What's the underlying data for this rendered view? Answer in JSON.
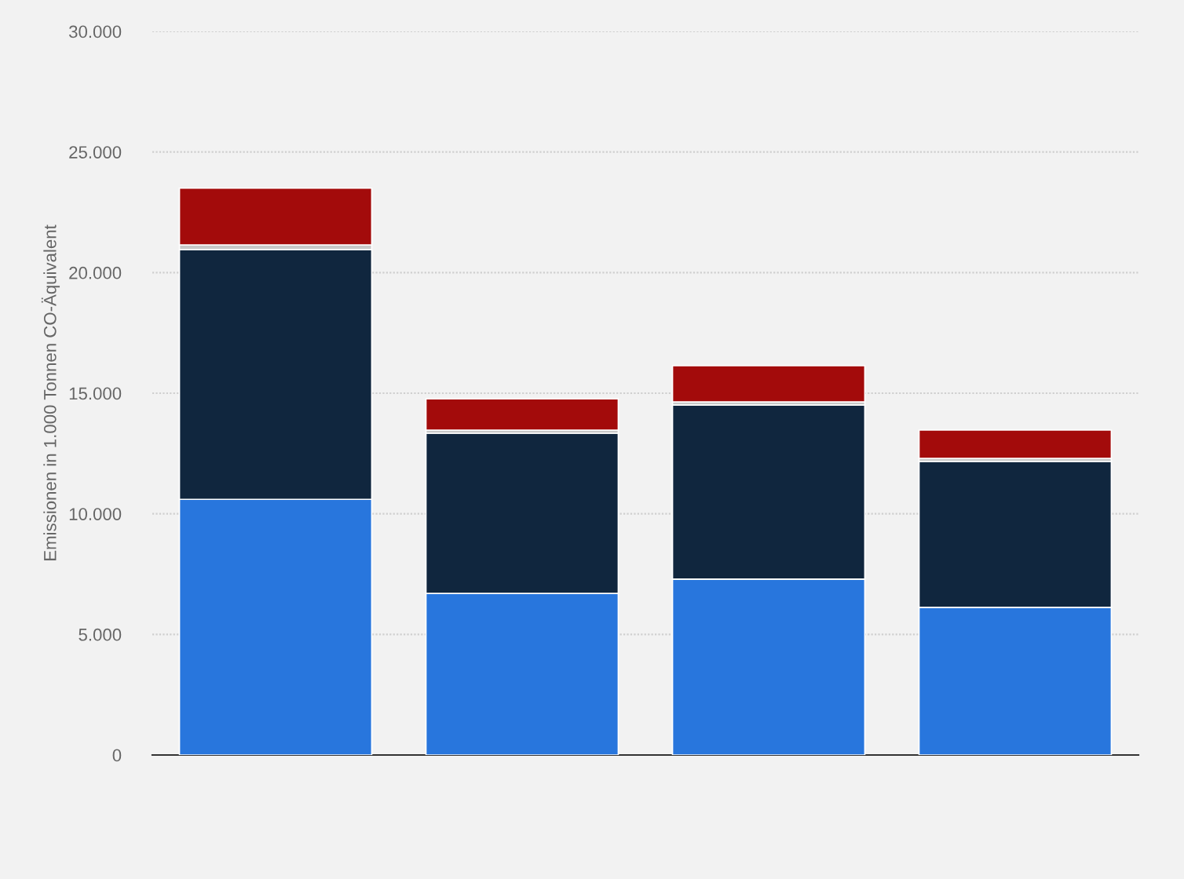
{
  "chart_data": {
    "type": "bar",
    "stacked": true,
    "ylabel": "Emissionen in 1.000 Tonnen CO-Äquivalent",
    "categories": [
      null,
      null,
      null,
      null
    ],
    "series": [
      {
        "color": "#2876dd",
        "values": [
          10600,
          6700,
          7290,
          6120
        ]
      },
      {
        "color": "#10263e",
        "values": [
          10350,
          6640,
          7220,
          6050
        ]
      },
      {
        "color": "#c8c8c8",
        "values": [
          200,
          130,
          130,
          130
        ]
      },
      {
        "color": "#a30b0b",
        "values": [
          2350,
          1300,
          1500,
          1170
        ]
      }
    ],
    "ylim": [
      0,
      30000
    ],
    "yticks": [
      {
        "value": 0,
        "label": "0"
      },
      {
        "value": 5000,
        "label": "5.000"
      },
      {
        "value": 10000,
        "label": "10.000"
      },
      {
        "value": 15000,
        "label": "15.000"
      },
      {
        "value": 20000,
        "label": "20.000"
      },
      {
        "value": 25000,
        "label": "25.000"
      },
      {
        "value": 30000,
        "label": "30.000"
      }
    ],
    "grid": "y",
    "legend": false
  }
}
